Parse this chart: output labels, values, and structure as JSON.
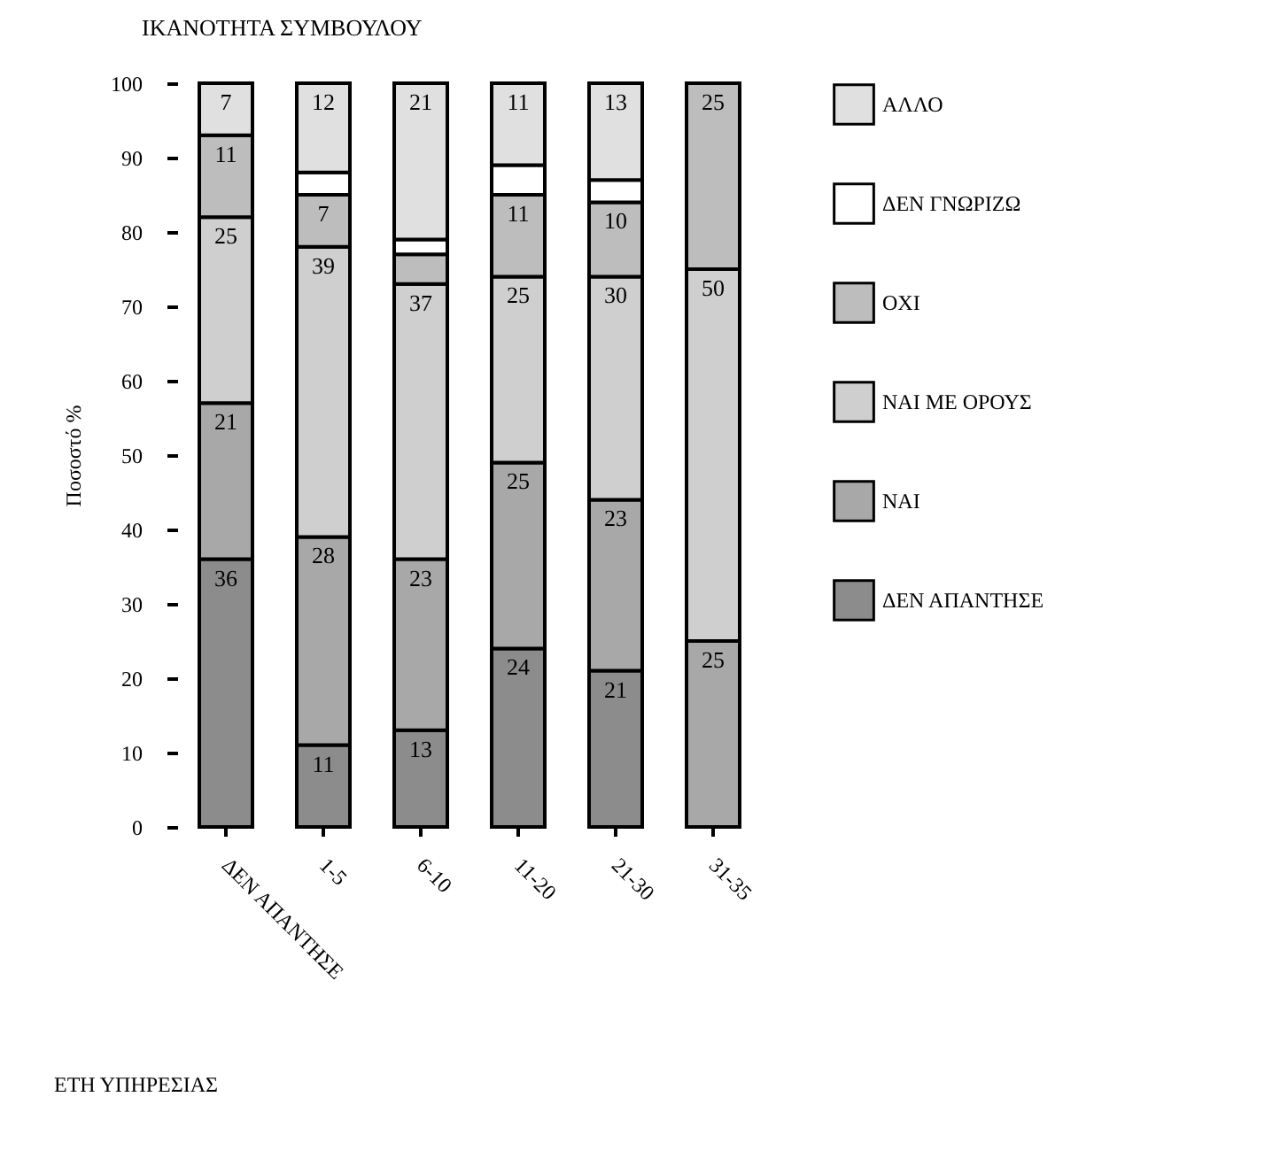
{
  "chart_data": {
    "type": "bar",
    "stacked": true,
    "title": "ΙΚΑΝΟΤΗΤΑ ΣΥΜΒΟΥΛΟΥ",
    "xlabel": "ΕΤΗ ΥΠΗΡΕΣΙΑΣ",
    "ylabel": "Ποσοστό %",
    "categories": [
      "ΔΕΝ ΑΠΑΝΤΗΣΕ",
      "1-5",
      "6-10",
      "11-20",
      "21-30",
      "31-35"
    ],
    "ylim": [
      0,
      100
    ],
    "yticks": [
      0,
      10,
      20,
      30,
      40,
      50,
      60,
      70,
      80,
      90,
      100
    ],
    "grid": false,
    "legend": "right",
    "series": [
      {
        "name": "ΔΕΝ ΑΠΑΝΤΗΣΕ",
        "color": "#8c8c8c",
        "values": [
          36,
          11,
          13,
          24,
          21,
          0
        ],
        "value_labels": [
          "36",
          "11",
          "13",
          "24",
          "21",
          null
        ]
      },
      {
        "name": "ΝΑΙ",
        "color": "#a8a8a8",
        "values": [
          21,
          28,
          23,
          25,
          23,
          25
        ],
        "value_labels": [
          "21",
          "28",
          "23",
          "25",
          "23",
          "25"
        ]
      },
      {
        "name": "ΝΑΙ ΜΕ ΟΡΟΥΣ",
        "color": "#cfcfcf",
        "values": [
          25,
          39,
          37,
          25,
          30,
          50
        ],
        "value_labels": [
          "25",
          "39",
          "37",
          "25",
          "30",
          "50"
        ]
      },
      {
        "name": "ΟΧΙ",
        "color": "#bdbdbd",
        "values": [
          11,
          7,
          4,
          11,
          10,
          25
        ],
        "value_labels": [
          "11",
          "7",
          null,
          "11",
          "10",
          "25"
        ]
      },
      {
        "name": "ΔΕΝ ΓΝΩΡΙΖΩ",
        "color": "#ffffff",
        "values": [
          0,
          3,
          2,
          4,
          3,
          0
        ],
        "value_labels": [
          null,
          null,
          null,
          null,
          null,
          null
        ]
      },
      {
        "name": "ΑΛΛΟ",
        "color": "#e0e0e0",
        "values": [
          7,
          12,
          21,
          11,
          13,
          0
        ],
        "value_labels": [
          "7",
          "12",
          "21",
          "11",
          "13",
          null
        ]
      }
    ]
  }
}
